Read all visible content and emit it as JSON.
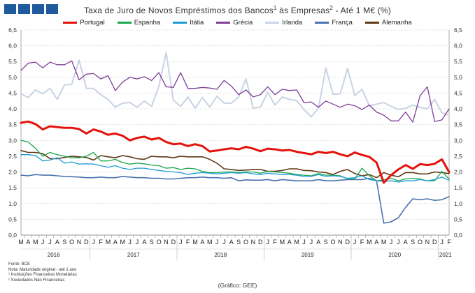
{
  "title": {
    "text_a": "Taxa de Juro de Novos Empréstimos dos Bancos",
    "sup_a": "1",
    "text_b": " às Empresas",
    "sup_b": "2",
    "text_c": " - Até 1 M€ (%)"
  },
  "notes": {
    "source": "Fonte: BCE",
    "note": "Nota: Maturidade original - até 1 ano",
    "note1": "¹ Instituições Financeiras Monetárias",
    "note2": "² Sociedades Não Financeiras"
  },
  "credit": "(Gráfico: GEE)",
  "chart_data": {
    "type": "line",
    "x": [
      "2016-03",
      "2016-04",
      "2016-05",
      "2016-06",
      "2016-07",
      "2016-08",
      "2016-09",
      "2016-10",
      "2016-11",
      "2016-12",
      "2017-01",
      "2017-02",
      "2017-03",
      "2017-04",
      "2017-05",
      "2017-06",
      "2017-07",
      "2017-08",
      "2017-09",
      "2017-10",
      "2017-11",
      "2017-12",
      "2018-01",
      "2018-02",
      "2018-03",
      "2018-04",
      "2018-05",
      "2018-06",
      "2018-07",
      "2018-08",
      "2018-09",
      "2018-10",
      "2018-11",
      "2018-12",
      "2019-01",
      "2019-02",
      "2019-03",
      "2019-04",
      "2019-05",
      "2019-06",
      "2019-07",
      "2019-08",
      "2019-09",
      "2019-10",
      "2019-11",
      "2019-12",
      "2020-01",
      "2020-02",
      "2020-03",
      "2020-04",
      "2020-05",
      "2020-06",
      "2020-07",
      "2020-08",
      "2020-09",
      "2020-10",
      "2020-11",
      "2020-12",
      "2021-01",
      "2021-02"
    ],
    "month_labels": [
      "M",
      "A",
      "M",
      "J",
      "J",
      "A",
      "S",
      "O",
      "N",
      "D",
      "J",
      "F",
      "M",
      "A",
      "M",
      "J",
      "J",
      "A",
      "S",
      "O",
      "N",
      "D",
      "J",
      "F",
      "M",
      "A",
      "M",
      "J",
      "J",
      "A",
      "S",
      "O",
      "N",
      "D",
      "J",
      "F",
      "M",
      "A",
      "M",
      "J",
      "J",
      "A",
      "S",
      "O",
      "N",
      "D",
      "J",
      "F",
      "M",
      "A",
      "M",
      "J",
      "J",
      "A",
      "S",
      "O",
      "N",
      "D",
      "J",
      "F"
    ],
    "year_labels": [
      {
        "label": "2016",
        "from": 0,
        "to": 9
      },
      {
        "label": "2017",
        "from": 10,
        "to": 21
      },
      {
        "label": "2018",
        "from": 22,
        "to": 33
      },
      {
        "label": "2019",
        "from": 34,
        "to": 45
      },
      {
        "label": "2020",
        "from": 46,
        "to": 57
      },
      {
        "label": "2021",
        "from": 58,
        "to": 59
      }
    ],
    "ylim": [
      0,
      6.5
    ],
    "yticks": [
      "0,0",
      "0,5",
      "1,0",
      "1,5",
      "2,0",
      "2,5",
      "3,0",
      "3,5",
      "4,0",
      "4,5",
      "5,0",
      "5,5",
      "6,0",
      "6,5"
    ],
    "grid": true,
    "legend_position": "top",
    "series": [
      {
        "name": "Portugal",
        "color": "#e3120b",
        "width": 3,
        "values": [
          3.56,
          3.6,
          3.52,
          3.35,
          3.45,
          3.42,
          3.4,
          3.4,
          3.36,
          3.22,
          3.35,
          3.28,
          3.18,
          3.22,
          3.15,
          3.0,
          3.08,
          3.12,
          3.03,
          3.08,
          2.95,
          2.88,
          2.9,
          2.82,
          2.88,
          2.82,
          2.65,
          2.68,
          2.72,
          2.75,
          2.72,
          2.8,
          2.74,
          2.66,
          2.74,
          2.72,
          2.68,
          2.7,
          2.64,
          2.6,
          2.56,
          2.64,
          2.6,
          2.64,
          2.56,
          2.5,
          2.62,
          2.54,
          2.48,
          2.3,
          1.66,
          1.9,
          2.08,
          2.22,
          2.1,
          2.25,
          2.22,
          2.26,
          2.4,
          2.0
        ]
      },
      {
        "name": "Espanha",
        "color": "#1aa64a",
        "width": 1.3,
        "values": [
          3.0,
          2.95,
          2.75,
          2.5,
          2.62,
          2.55,
          2.5,
          2.45,
          2.45,
          2.5,
          2.62,
          2.35,
          2.35,
          2.4,
          2.3,
          2.25,
          2.28,
          2.26,
          2.22,
          2.2,
          2.12,
          2.14,
          2.08,
          2.12,
          2.1,
          2.02,
          1.98,
          1.98,
          2.0,
          2.0,
          1.98,
          2.0,
          2.0,
          1.96,
          2.02,
          2.0,
          1.98,
          1.96,
          1.92,
          1.9,
          1.88,
          1.95,
          1.9,
          1.9,
          1.88,
          1.78,
          1.78,
          2.12,
          1.88,
          1.72,
          1.75,
          1.8,
          1.72,
          1.78,
          1.8,
          1.78,
          1.72,
          1.72,
          2.02,
          1.78
        ]
      },
      {
        "name": "Itália",
        "color": "#1e9bd7",
        "width": 1.3,
        "values": [
          2.55,
          2.55,
          2.52,
          2.35,
          2.38,
          2.45,
          2.28,
          2.32,
          2.25,
          2.26,
          2.25,
          2.2,
          2.15,
          2.2,
          2.12,
          2.08,
          2.12,
          2.12,
          2.08,
          2.05,
          2.02,
          2.0,
          1.98,
          1.92,
          1.96,
          1.98,
          1.96,
          1.94,
          1.96,
          1.98,
          1.96,
          1.98,
          1.94,
          1.92,
          1.96,
          1.94,
          1.92,
          1.92,
          1.9,
          1.86,
          1.86,
          1.92,
          1.86,
          1.88,
          1.86,
          1.8,
          1.82,
          1.88,
          1.76,
          1.72,
          1.7,
          1.72,
          1.68,
          1.72,
          1.72,
          1.76,
          1.72,
          1.76,
          1.84,
          1.74
        ]
      },
      {
        "name": "Grécia",
        "color": "#7d3f98",
        "width": 1.3,
        "values": [
          5.22,
          5.45,
          5.48,
          5.3,
          5.48,
          5.4,
          5.4,
          5.52,
          4.92,
          5.1,
          5.12,
          4.95,
          5.05,
          4.58,
          4.85,
          5.0,
          4.95,
          5.02,
          4.9,
          5.15,
          4.7,
          4.68,
          5.15,
          4.65,
          4.65,
          4.68,
          4.66,
          4.62,
          4.9,
          4.72,
          4.45,
          4.6,
          4.38,
          4.45,
          4.7,
          4.45,
          4.62,
          4.58,
          4.6,
          4.2,
          4.22,
          4.05,
          4.25,
          4.15,
          4.05,
          4.15,
          4.1,
          3.98,
          4.12,
          3.9,
          3.8,
          3.62,
          3.62,
          3.9,
          3.58,
          4.42,
          4.7,
          3.6,
          3.65,
          4.0
        ]
      },
      {
        "name": "Irlanda",
        "color": "#c8d3e3",
        "width": 2,
        "values": [
          4.48,
          4.36,
          4.6,
          4.48,
          4.65,
          4.3,
          4.76,
          4.78,
          5.55,
          4.65,
          4.65,
          4.45,
          4.3,
          4.05,
          4.18,
          4.2,
          4.05,
          4.25,
          4.08,
          4.72,
          5.78,
          4.28,
          4.08,
          4.38,
          4.02,
          4.36,
          4.06,
          4.4,
          4.18,
          4.18,
          4.38,
          4.95,
          4.02,
          4.06,
          4.52,
          4.12,
          4.38,
          4.3,
          4.26,
          3.98,
          3.75,
          4.02,
          5.3,
          4.46,
          4.48,
          5.28,
          4.42,
          4.62,
          4.1,
          4.15,
          4.2,
          4.08,
          3.98,
          4.02,
          4.12,
          4.05,
          4.0,
          4.3,
          3.88,
          3.8
        ]
      },
      {
        "name": "França",
        "color": "#4a72b0",
        "width": 1.6,
        "values": [
          1.9,
          1.88,
          1.92,
          1.9,
          1.9,
          1.88,
          1.86,
          1.85,
          1.84,
          1.82,
          1.82,
          1.84,
          1.82,
          1.82,
          1.86,
          1.84,
          1.82,
          1.82,
          1.8,
          1.8,
          1.78,
          1.78,
          1.8,
          1.82,
          1.82,
          1.84,
          1.82,
          1.82,
          1.8,
          1.82,
          1.72,
          1.75,
          1.74,
          1.74,
          1.76,
          1.72,
          1.76,
          1.74,
          1.72,
          1.72,
          1.72,
          1.76,
          1.72,
          1.72,
          1.74,
          1.76,
          1.76,
          1.76,
          1.8,
          1.72,
          0.38,
          0.42,
          0.55,
          0.88,
          1.15,
          1.12,
          1.15,
          1.1,
          1.12,
          1.22
        ]
      },
      {
        "name": "Alemanha",
        "color": "#5e3a17",
        "width": 1.6,
        "values": [
          2.68,
          2.62,
          2.62,
          2.58,
          2.42,
          2.42,
          2.46,
          2.5,
          2.48,
          2.46,
          2.38,
          2.52,
          2.48,
          2.45,
          2.52,
          2.48,
          2.42,
          2.4,
          2.5,
          2.48,
          2.48,
          2.45,
          2.5,
          2.48,
          2.48,
          2.48,
          2.4,
          2.28,
          2.1,
          2.08,
          2.05,
          2.06,
          2.08,
          2.08,
          2.02,
          2.02,
          2.05,
          2.1,
          2.1,
          2.05,
          2.04,
          2.0,
          1.98,
          1.92,
          2.02,
          2.08,
          1.95,
          1.88,
          1.92,
          1.82,
          1.98,
          1.9,
          1.85,
          1.98,
          1.98,
          1.94,
          1.94,
          2.0,
          1.98,
          1.95
        ]
      }
    ]
  }
}
